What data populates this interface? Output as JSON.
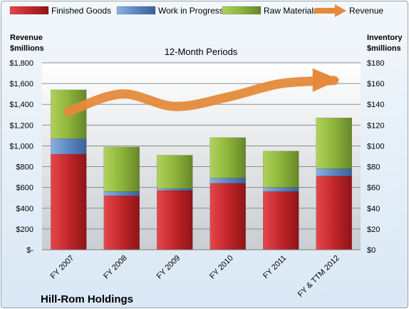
{
  "chart_data": {
    "type": "bar",
    "title": "12-Month Periods",
    "company": "Hill-Rom Holdings",
    "left_axis": {
      "label_line1": "Revenue",
      "label_line2": "$millions",
      "ylim": [
        0,
        1800
      ],
      "ticks": [
        "$-",
        "$200",
        "$400",
        "$600",
        "$800",
        "$1,000",
        "$1,200",
        "$1,400",
        "$1,600",
        "$1,800"
      ]
    },
    "right_axis": {
      "label_line1": "Inventory",
      "label_line2": "$millions",
      "ylim": [
        0,
        180
      ],
      "ticks": [
        "$0",
        "$20",
        "$40",
        "$60",
        "$80",
        "$100",
        "$120",
        "$140",
        "$160",
        "$180"
      ]
    },
    "categories": [
      "FY 2007",
      "FY 2008",
      "FY 2009",
      "FY 2010",
      "FY 2011",
      "FY & TTM 2012"
    ],
    "series": [
      {
        "name": "Finished Goods",
        "axis": "right",
        "kind": "stacked-bar",
        "color": "#c0262a",
        "values": [
          92,
          52,
          57,
          64,
          56,
          71
        ]
      },
      {
        "name": "Work in Progress",
        "axis": "right",
        "kind": "stacked-bar",
        "color": "#5b86c4",
        "values": [
          15,
          4,
          2,
          5,
          4,
          7
        ]
      },
      {
        "name": "Raw Materials",
        "axis": "right",
        "kind": "stacked-bar",
        "color": "#8eb43a",
        "values": [
          47,
          43,
          32,
          39,
          35,
          49
        ]
      },
      {
        "name": "Revenue",
        "axis": "left",
        "kind": "line-arrow",
        "color": "#e58a3c",
        "values": [
          1330,
          1500,
          1380,
          1470,
          1600,
          1630
        ]
      }
    ],
    "grid": true,
    "legend_position": "top"
  }
}
